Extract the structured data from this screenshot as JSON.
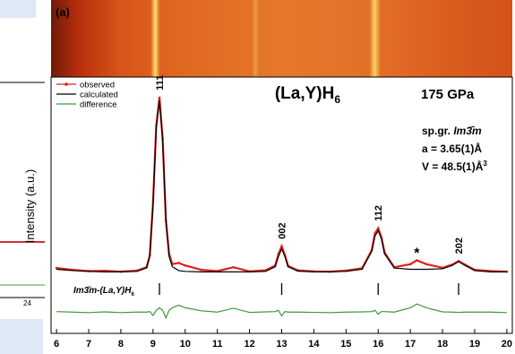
{
  "chart_data": {
    "type": "line",
    "panel_label": "(a)",
    "title": {
      "main": "(La,Y)H",
      "sub": "6"
    },
    "pressure": "175 GPa",
    "space_group": {
      "prefix": "sp.gr. ",
      "name": "Im3̄m"
    },
    "lattice_a": "a = 3.65(1)Å",
    "volume": {
      "main": "V = 48.5(1)Å",
      "sup": "3"
    },
    "ylabel": "Intensity (a.u.)",
    "phase_label": {
      "main": "Im3̄m-(La,Y)H",
      "sub": "6"
    },
    "left_fragment_label": "24",
    "legend": "upper left",
    "xlim": [
      5.83,
      20.17
    ],
    "xticks": [
      6,
      7,
      8,
      9,
      10,
      11,
      12,
      13,
      14,
      15,
      16,
      17,
      18,
      19,
      20
    ],
    "ylim": [
      0,
      100
    ],
    "x": [
      6,
      6.5,
      7,
      7.5,
      8,
      8.5,
      8.8,
      8.9,
      9.0,
      9.1,
      9.2,
      9.3,
      9.4,
      9.5,
      9.6,
      9.8,
      10,
      10.5,
      11,
      11.5,
      12,
      12.5,
      12.8,
      12.9,
      13.0,
      13.1,
      13.2,
      13.5,
      14,
      14.5,
      15,
      15.5,
      15.8,
      15.9,
      16.0,
      16.1,
      16.2,
      16.5,
      17,
      17.2,
      17.5,
      18,
      18.3,
      18.5,
      18.7,
      19,
      19.5,
      20
    ],
    "series": [
      {
        "name": "observed",
        "color": "#e0201b",
        "values": [
          25.5,
          24.8,
          24.3,
          24.4,
          24.1,
          24.5,
          25.8,
          30.5,
          51,
          81,
          92,
          76,
          44,
          31,
          27,
          27.5,
          26.5,
          24.8,
          24.3,
          25.8,
          24.2,
          24.6,
          26.5,
          31,
          34,
          30.5,
          26.3,
          24.6,
          24.2,
          24.1,
          24.5,
          25.4,
          32.5,
          39,
          41,
          37.5,
          31.5,
          25.8,
          27,
          28.5,
          27,
          25.6,
          26.8,
          28.2,
          26.8,
          24.8,
          24.3,
          24.1
        ]
      },
      {
        "name": "calculated",
        "color": "#000000",
        "values": [
          25,
          24.5,
          24.2,
          24,
          24,
          24.2,
          25.5,
          30,
          50,
          80,
          91,
          75,
          45,
          30,
          26,
          24.5,
          24.2,
          24,
          24,
          24,
          24,
          24.2,
          26,
          30,
          33,
          30,
          26,
          24.3,
          24,
          24,
          24.2,
          25,
          32,
          38,
          40,
          37,
          31,
          25.5,
          25,
          25,
          25,
          25.2,
          26.5,
          28,
          26.5,
          24.5,
          24,
          24
        ]
      },
      {
        "name": "difference",
        "color": "#3a9b3a",
        "values": [
          8.5,
          8.3,
          8.1,
          8.4,
          8.1,
          8.3,
          8.3,
          8.5,
          7,
          9,
          10,
          9,
          6,
          9,
          10,
          11,
          10,
          8.8,
          8.3,
          9.8,
          8.2,
          8.4,
          8.5,
          9,
          6.8,
          8.5,
          8.3,
          8.3,
          8.2,
          8.1,
          8.3,
          8.4,
          8.5,
          9,
          7.5,
          8.5,
          8.5,
          8.3,
          10,
          11.5,
          10,
          8.4,
          8.3,
          8.2,
          8.3,
          8.3,
          8.3,
          8.1
        ]
      }
    ],
    "reflections": [
      9.2,
      13,
      16,
      18.5
    ],
    "peak_labels": [
      "111",
      "002",
      "112",
      "202"
    ],
    "impurity": {
      "x": 17.2,
      "label": "*"
    }
  }
}
